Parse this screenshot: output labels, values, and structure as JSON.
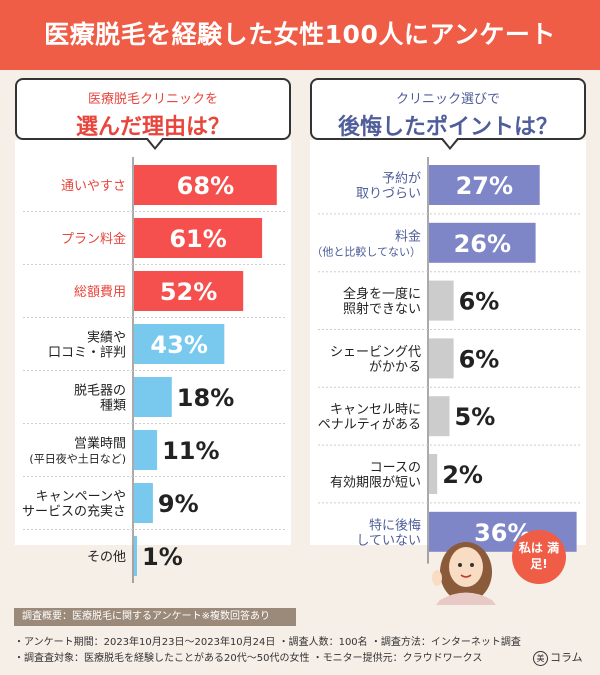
{
  "header": {
    "title": "医療脱毛を経験した女性100人にアンケート"
  },
  "left_heading": {
    "line1": "医療脱毛クリニックを",
    "line2": "選んだ理由は？"
  },
  "right_heading": {
    "line1": "クリニック選びで",
    "line2": "後悔したポイントは？"
  },
  "character_bubble": "私は 満足!",
  "footer": {
    "box": "調査概要：医療脱毛に関するアンケート※複数回答あり",
    "line1": "・アンケート期間：2023年10月23日〜2023年10月24日  ・調査人数：100名  ・調査方法：インターネット調査",
    "line2": "・調査査対象：医療脱毛を経験したことがある20代〜50代の女性  ・モニター提供元：クラウドワークス",
    "brand": "コラム",
    "brand_mark": "美"
  },
  "colors": {
    "header": "#ef5d47",
    "highlight_red": "#f5504e",
    "light_blue": "#79c9ee",
    "indigo": "#7f86c7",
    "gray": "#cccccc"
  },
  "chart_data": [
    {
      "type": "bar",
      "orientation": "horizontal",
      "title": "医療脱毛クリニックを選んだ理由は？",
      "unit": "%",
      "xlim": [
        0,
        100
      ],
      "categories": [
        [
          "通いやすさ"
        ],
        [
          "プラン料金"
        ],
        [
          "総額費用"
        ],
        [
          "実績や",
          "口コミ・評判"
        ],
        [
          "脱毛器の",
          "種類"
        ],
        [
          "営業時間",
          "(平日夜や土日など)"
        ],
        [
          "キャンペーンや",
          "サービスの充実さ"
        ],
        [
          "その他"
        ]
      ],
      "values": [
        68,
        61,
        52,
        43,
        18,
        11,
        9,
        1
      ],
      "bar_colors": [
        "#f5504e",
        "#f5504e",
        "#f5504e",
        "#79c9ee",
        "#79c9ee",
        "#79c9ee",
        "#79c9ee",
        "#79c9ee"
      ],
      "label_colors": [
        "#e8453c",
        "#e8453c",
        "#e8453c",
        "#222222",
        "#222222",
        "#222222",
        "#222222",
        "#222222"
      ]
    },
    {
      "type": "bar",
      "orientation": "horizontal",
      "title": "クリニック選びで後悔したポイントは？",
      "unit": "%",
      "xlim": [
        0,
        100
      ],
      "categories": [
        [
          "予約が",
          "取りづらい"
        ],
        [
          "料金",
          "（他と比較してない）"
        ],
        [
          "全身を一度に",
          "照射できない"
        ],
        [
          "シェービング代",
          "がかかる"
        ],
        [
          "キャンセル時に",
          "ペナルティがある"
        ],
        [
          "コースの",
          "有効期限が短い"
        ],
        [
          "特に後悔",
          "していない"
        ]
      ],
      "values": [
        27,
        26,
        6,
        6,
        5,
        2,
        36
      ],
      "bar_colors": [
        "#7f86c7",
        "#7f86c7",
        "#cccccc",
        "#cccccc",
        "#cccccc",
        "#cccccc",
        "#7f86c7"
      ],
      "label_colors": [
        "#4f5d9a",
        "#4f5d9a",
        "#222222",
        "#222222",
        "#222222",
        "#222222",
        "#4f5d9a"
      ]
    }
  ]
}
